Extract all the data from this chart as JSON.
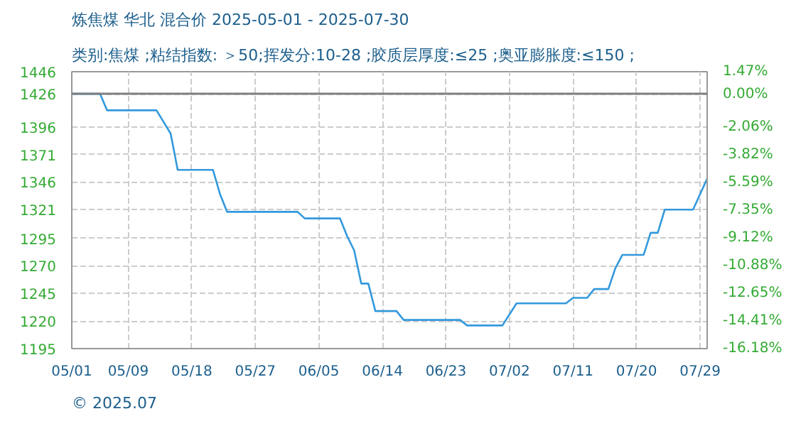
{
  "chart_data": {
    "type": "line",
    "title": "炼焦煤 华北 混合价 2025-05-01 - 2025-07-30",
    "subtitle": "类别:焦煤 ;粘结指数: ＞50;挥发分:10-28 ;胶质层厚度:≤25 ;奥亚膨胀度:≤150 ;",
    "annotations": [
      "© 2025.07"
    ],
    "x": [
      "2025-05-01",
      "2025-05-05",
      "2025-05-06",
      "2025-05-13",
      "2025-05-15",
      "2025-05-16",
      "2025-05-21",
      "2025-05-22",
      "2025-05-23",
      "2025-06-02",
      "2025-06-03",
      "2025-06-08",
      "2025-06-09",
      "2025-06-10",
      "2025-06-11",
      "2025-06-12",
      "2025-06-13",
      "2025-06-16",
      "2025-06-17",
      "2025-06-25",
      "2025-06-26",
      "2025-07-01",
      "2025-07-03",
      "2025-07-10",
      "2025-07-11",
      "2025-07-13",
      "2025-07-14",
      "2025-07-16",
      "2025-07-17",
      "2025-07-18",
      "2025-07-21",
      "2025-07-22",
      "2025-07-23",
      "2025-07-24",
      "2025-07-28",
      "2025-07-30"
    ],
    "series": [
      {
        "color": "#3399dd",
        "values": [
          1426,
          1426,
          1411,
          1411,
          1390,
          1357,
          1357,
          1335,
          1319,
          1319,
          1313,
          1313,
          1297,
          1284,
          1254,
          1254,
          1229,
          1229,
          1221,
          1221,
          1216,
          1216,
          1236,
          1236,
          1241,
          1241,
          1249,
          1249,
          1268,
          1280,
          1280,
          1300,
          1300,
          1321,
          1321,
          1349
        ]
      }
    ],
    "xlim": [
      "2025-05-01",
      "2025-07-30"
    ],
    "xticks": [
      {
        "value": "2025-05-01",
        "label": "05/01"
      },
      {
        "value": "2025-05-09",
        "label": "05/09"
      },
      {
        "value": "2025-05-18",
        "label": "05/18"
      },
      {
        "value": "2025-05-27",
        "label": "05/27"
      },
      {
        "value": "2025-06-05",
        "label": "06/05"
      },
      {
        "value": "2025-06-14",
        "label": "06/14"
      },
      {
        "value": "2025-06-23",
        "label": "06/23"
      },
      {
        "value": "2025-07-02",
        "label": "07/02"
      },
      {
        "value": "2025-07-11",
        "label": "07/11"
      },
      {
        "value": "2025-07-20",
        "label": "07/20"
      },
      {
        "value": "2025-07-29",
        "label": "07/29"
      }
    ],
    "ylim": [
      1195,
      1446
    ],
    "yticks": [
      1195,
      1220,
      1245,
      1270,
      1295,
      1321,
      1346,
      1371,
      1396,
      1426,
      1446
    ],
    "y2lim": [
      -16.18,
      1.47
    ],
    "y2ticks": [
      {
        "value": -16.18,
        "label": "-16.18%"
      },
      {
        "value": -14.41,
        "label": "-14.41%"
      },
      {
        "value": -12.65,
        "label": "-12.65%"
      },
      {
        "value": -10.88,
        "label": "-10.88%"
      },
      {
        "value": -9.12,
        "label": "-9.12%"
      },
      {
        "value": -7.35,
        "label": "-7.35%"
      },
      {
        "value": -5.59,
        "label": "-5.59%"
      },
      {
        "value": -3.82,
        "label": "-3.82%"
      },
      {
        "value": -2.06,
        "label": "-2.06%"
      },
      {
        "value": 0.0,
        "label": "0.00%"
      },
      {
        "value": 1.47,
        "label": "1.47%"
      }
    ],
    "ref_lines": [
      {
        "axis": "y",
        "value": 1426,
        "color": "#808080"
      }
    ],
    "grid": true,
    "line_style": "solid"
  }
}
